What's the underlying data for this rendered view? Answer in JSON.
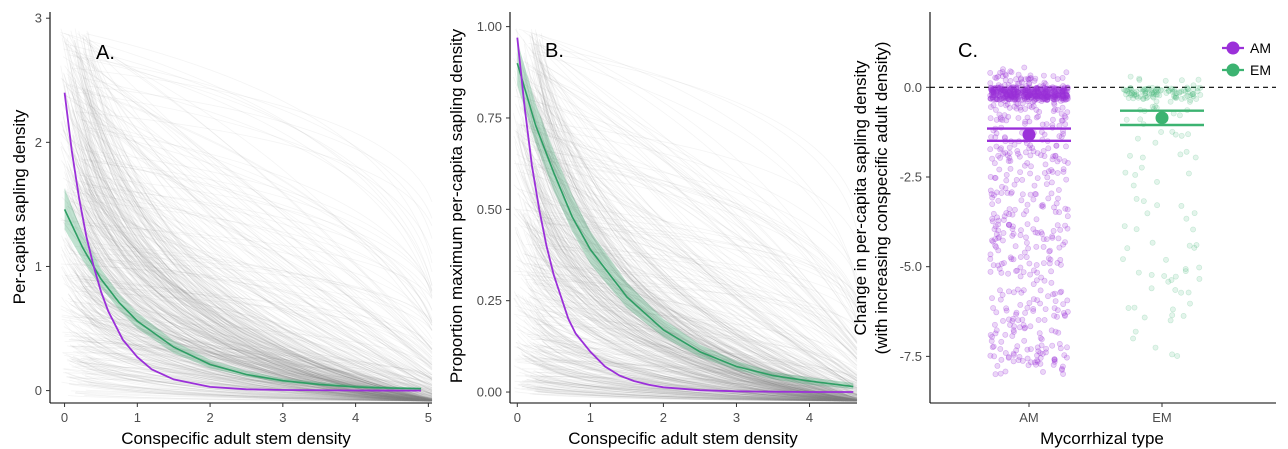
{
  "chart_data": [
    {
      "type": "line",
      "panel_label": "A.",
      "xlabel": "Conspecific adult stem density",
      "ylabel": "Per-capita sapling density",
      "xlim": [
        -0.2,
        5.05
      ],
      "ylim": [
        -0.1,
        3.05
      ],
      "x_ticks": [
        0,
        1,
        2,
        3,
        4,
        5
      ],
      "y_ticks": [
        0,
        1,
        2,
        3
      ],
      "background_lines": "many grey thin per-species curves",
      "series": [
        {
          "color": "#9B30D9",
          "x": [
            0,
            0.1,
            0.2,
            0.3,
            0.4,
            0.5,
            0.6,
            0.8,
            1.0,
            1.2,
            1.5,
            2.0,
            2.5,
            3.0,
            4.0,
            4.9
          ],
          "values": [
            2.4,
            1.93,
            1.55,
            1.24,
            1.0,
            0.8,
            0.64,
            0.41,
            0.27,
            0.17,
            0.09,
            0.03,
            0.01,
            0.005,
            0.001,
            0.0
          ]
        },
        {
          "color": "#2E9E64",
          "x": [
            0,
            0.25,
            0.5,
            0.75,
            1.0,
            1.5,
            2.0,
            2.5,
            3.0,
            3.5,
            4.0,
            4.5,
            4.9
          ],
          "values": [
            1.46,
            1.15,
            0.9,
            0.71,
            0.56,
            0.35,
            0.21,
            0.13,
            0.08,
            0.05,
            0.03,
            0.02,
            0.015
          ],
          "ci_low": [
            1.3,
            1.05,
            0.83,
            0.65,
            0.5,
            0.3,
            0.18,
            0.11,
            0.065,
            0.04,
            0.02,
            0.01,
            0.005
          ],
          "ci_high": [
            1.63,
            1.27,
            0.98,
            0.78,
            0.63,
            0.4,
            0.25,
            0.16,
            0.1,
            0.07,
            0.045,
            0.032,
            0.025
          ]
        }
      ]
    },
    {
      "type": "line",
      "panel_label": "B.",
      "xlabel": "Conspecific adult stem density",
      "ylabel": "Proportion maximum per-capita sapling density",
      "xlim": [
        -0.1,
        4.65
      ],
      "ylim": [
        -0.03,
        1.04
      ],
      "x_ticks": [
        0,
        1,
        2,
        3,
        4
      ],
      "y_ticks": [
        0.0,
        0.25,
        0.5,
        0.75,
        1.0
      ],
      "y_tick_labels": [
        "0.00",
        "0.25",
        "0.50",
        "0.75",
        "1.00"
      ],
      "background_lines": "many grey thin per-species curves",
      "series": [
        {
          "color": "#9B30D9",
          "x": [
            0,
            0.1,
            0.2,
            0.3,
            0.4,
            0.5,
            0.6,
            0.7,
            0.8,
            1.0,
            1.2,
            1.4,
            1.6,
            1.8,
            2.0,
            2.5,
            3.0,
            3.5,
            4.0,
            4.6
          ],
          "values": [
            0.97,
            0.78,
            0.62,
            0.5,
            0.4,
            0.32,
            0.26,
            0.2,
            0.16,
            0.11,
            0.07,
            0.045,
            0.03,
            0.02,
            0.013,
            0.005,
            0.002,
            0.001,
            0.0,
            0.0
          ]
        },
        {
          "color": "#2E9E64",
          "x": [
            0,
            0.25,
            0.5,
            0.75,
            1.0,
            1.5,
            2.0,
            2.5,
            3.0,
            3.5,
            4.0,
            4.6
          ],
          "values": [
            0.9,
            0.73,
            0.6,
            0.48,
            0.39,
            0.26,
            0.17,
            0.11,
            0.07,
            0.045,
            0.03,
            0.015
          ],
          "ci_low": [
            0.84,
            0.68,
            0.55,
            0.44,
            0.35,
            0.23,
            0.15,
            0.095,
            0.06,
            0.035,
            0.02,
            0.008
          ],
          "ci_high": [
            0.96,
            0.79,
            0.66,
            0.54,
            0.44,
            0.3,
            0.2,
            0.13,
            0.085,
            0.055,
            0.04,
            0.025
          ]
        }
      ]
    },
    {
      "type": "scatter",
      "panel_label": "C.",
      "xlabel": "Mycorrhizal type",
      "ylabel": "Change in per-capita sapling density",
      "ylabel2": "(with increasing conspecific adult density)",
      "categories": [
        "AM",
        "EM"
      ],
      "ylim": [
        -8.8,
        2.1
      ],
      "y_ticks": [
        0.0,
        -2.5,
        -5.0,
        -7.5
      ],
      "y_tick_labels": [
        "0.0",
        "-2.5",
        "-5.0",
        "-7.5"
      ],
      "reference_line": 0,
      "legend": {
        "position": "top-right",
        "entries": [
          "AM",
          "EM"
        ]
      },
      "series": [
        {
          "name": "AM",
          "color": "#9B30D9",
          "mean": -1.32,
          "ci": [
            -1.49,
            -1.15
          ],
          "n_points": 900,
          "y_range": [
            -8.0,
            0.8
          ]
        },
        {
          "name": "EM",
          "color": "#3CB371",
          "mean": -0.85,
          "ci": [
            -1.05,
            -0.65
          ],
          "n_points": 180,
          "y_range": [
            -7.6,
            0.3
          ]
        }
      ]
    }
  ]
}
